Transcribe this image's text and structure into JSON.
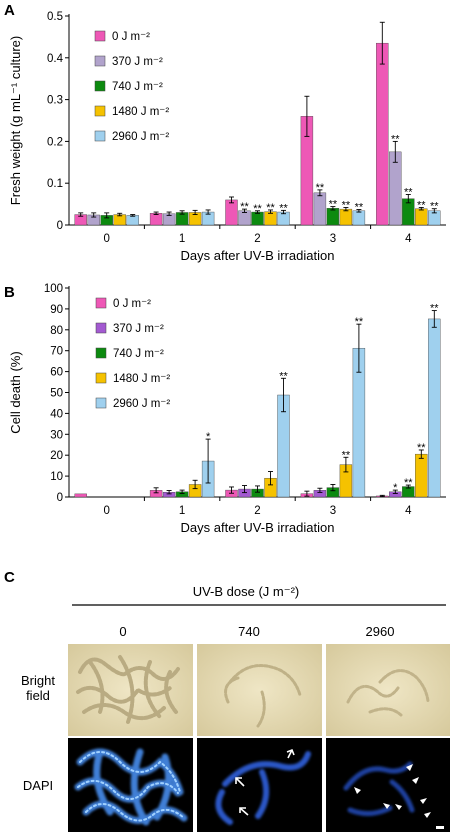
{
  "colors": {
    "s0": "#ee58b6",
    "s370A": "#b1a3cc",
    "s370B": "#a35ad1",
    "s740": "#0c8a0f",
    "s1480": "#f5c200",
    "s2960": "#9fd0ee"
  },
  "chart_data": [
    {
      "panel": "A",
      "type": "bar",
      "categories": [
        "0",
        "1",
        "2",
        "3",
        "4"
      ],
      "xlabel": "Days after UV-B irradiation",
      "ylabel": "Fresh weight  (g mL⁻¹ culture)",
      "ylim": [
        0,
        0.5
      ],
      "yticks": [
        "0",
        "0.1",
        "0.2",
        "0.3",
        "0.4",
        "0.5"
      ],
      "grid": false,
      "legend_position": "top-left",
      "series": [
        {
          "name": "0 J m⁻²",
          "color": "#ee58b6",
          "values": [
            0.025,
            0.028,
            0.06,
            0.26,
            0.435
          ],
          "errors": [
            0.004,
            0.003,
            0.007,
            0.048,
            0.05
          ],
          "sig": [
            "",
            "",
            "",
            "",
            ""
          ]
        },
        {
          "name": "370 J m⁻²",
          "color": "#b1a3cc",
          "values": [
            0.024,
            0.027,
            0.034,
            0.077,
            0.175
          ],
          "errors": [
            0.005,
            0.004,
            0.004,
            0.007,
            0.025
          ],
          "sig": [
            "",
            "",
            "**",
            "**",
            "**"
          ]
        },
        {
          "name": "740 J m⁻²",
          "color": "#0c8a0f",
          "values": [
            0.023,
            0.03,
            0.031,
            0.04,
            0.063
          ],
          "errors": [
            0.006,
            0.004,
            0.003,
            0.004,
            0.01
          ],
          "sig": [
            "",
            "",
            "**",
            "**",
            "**"
          ]
        },
        {
          "name": "1480 J m⁻²",
          "color": "#f5c200",
          "values": [
            0.025,
            0.03,
            0.032,
            0.038,
            0.039
          ],
          "errors": [
            0.003,
            0.005,
            0.004,
            0.004,
            0.003
          ],
          "sig": [
            "",
            "",
            "**",
            "**",
            "**"
          ]
        },
        {
          "name": "2960 J m⁻²",
          "color": "#9fd0ee",
          "values": [
            0.023,
            0.031,
            0.031,
            0.034,
            0.034
          ],
          "errors": [
            0.002,
            0.005,
            0.004,
            0.003,
            0.005
          ],
          "sig": [
            "",
            "",
            "**",
            "**",
            "**"
          ]
        }
      ]
    },
    {
      "panel": "B",
      "type": "bar",
      "categories": [
        "0",
        "1",
        "2",
        "3",
        "4"
      ],
      "xlabel": "Days after UV-B irradiation",
      "ylabel": "Cell death (%)",
      "ylim": [
        0,
        100
      ],
      "yticks": [
        "0",
        "10",
        "20",
        "30",
        "40",
        "50",
        "60",
        "70",
        "80",
        "90",
        "100"
      ],
      "grid": false,
      "legend_position": "top-left",
      "series": [
        {
          "name": "0 J m⁻²",
          "color": "#ee58b6",
          "values": [
            1.5,
            3.2,
            3.3,
            1.6,
            0.5
          ],
          "errors": [
            0,
            1.2,
            1.5,
            1.2,
            0.3
          ],
          "sig": [
            "",
            "",
            "",
            "",
            ""
          ]
        },
        {
          "name": "370 J m⁻²",
          "color": "#a35ad1",
          "values": [
            null,
            2.3,
            3.8,
            3.2,
            2.5
          ],
          "errors": [
            0,
            0.8,
            1.7,
            1.0,
            0.8
          ],
          "sig": [
            "",
            "",
            "",
            "",
            "*"
          ]
        },
        {
          "name": "740 J m⁻²",
          "color": "#0c8a0f",
          "values": [
            null,
            2.5,
            3.8,
            4.5,
            5.0
          ],
          "errors": [
            0,
            0.8,
            1.5,
            1.5,
            0.7
          ],
          "sig": [
            "",
            "",
            "",
            "",
            "**"
          ]
        },
        {
          "name": "1480 J m⁻²",
          "color": "#f5c200",
          "values": [
            null,
            6.0,
            9.0,
            15.5,
            20.5
          ],
          "errors": [
            0,
            2.0,
            3.2,
            3.5,
            2.0
          ],
          "sig": [
            "",
            "",
            "",
            "**",
            "**"
          ]
        },
        {
          "name": "2960 J m⁻²",
          "color": "#9fd0ee",
          "values": [
            null,
            17.2,
            48.8,
            71.2,
            85.2
          ],
          "errors": [
            0,
            10.5,
            8.0,
            11.5,
            4.0
          ],
          "sig": [
            "",
            "*",
            "**",
            "**",
            "**"
          ]
        }
      ]
    }
  ],
  "panel_c": {
    "label": "C",
    "dose_title": "UV-B dose (J m⁻²)",
    "doses": [
      "0",
      "740",
      "2960"
    ],
    "rows": [
      "Bright\nfield",
      "DAPI"
    ]
  }
}
